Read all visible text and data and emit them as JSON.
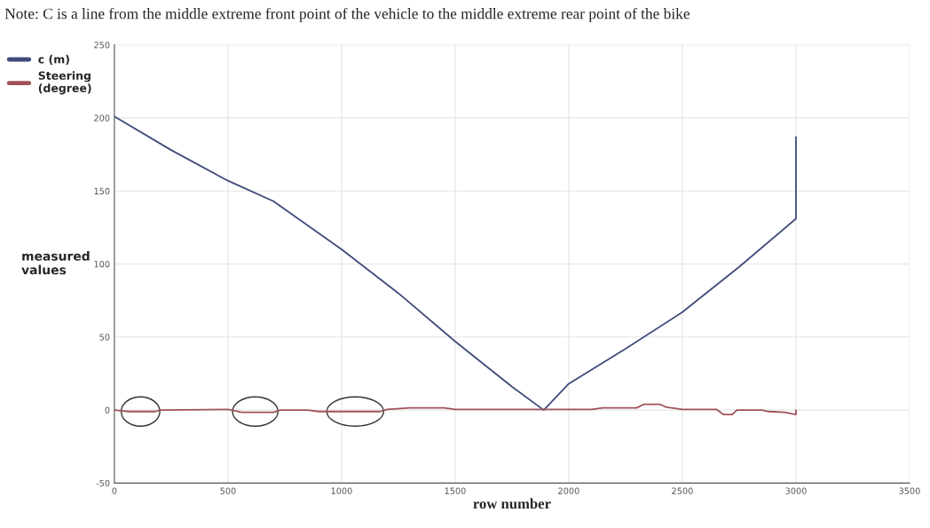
{
  "chart_data": {
    "type": "line",
    "title": "Note: C is a line from the middle extreme front point of the vehicle to the middle extreme rear point of the bike",
    "xlabel": "row number",
    "ylabel": "measured\nvalues",
    "xlim": [
      0,
      3500
    ],
    "ylim": [
      -50,
      250
    ],
    "xticks": [
      0,
      500,
      1000,
      1500,
      2000,
      2500,
      3000,
      3500
    ],
    "yticks": [
      -50,
      0,
      50,
      100,
      150,
      200,
      250
    ],
    "grid": true,
    "legend": "top left",
    "line_style": "solid",
    "marker": "none",
    "series": [
      {
        "name": "c (m)",
        "color": "#3f4b7a",
        "x": [
          0,
          250,
          500,
          700,
          1000,
          1250,
          1500,
          1750,
          1890,
          2000,
          2250,
          2500,
          2750,
          3000,
          3000
        ],
        "values": [
          201,
          178,
          157,
          143,
          110,
          80,
          47,
          16,
          0,
          18,
          42,
          67,
          98,
          131,
          187
        ]
      },
      {
        "name": "Steering\n(degree)",
        "color": "#a0525a",
        "x": [
          0,
          30,
          60,
          180,
          200,
          500,
          530,
          560,
          700,
          730,
          850,
          900,
          1170,
          1200,
          1300,
          1450,
          1500,
          1800,
          2100,
          2150,
          2300,
          2330,
          2400,
          2430,
          2500,
          2650,
          2680,
          2720,
          2740,
          2850,
          2880,
          2950,
          3000,
          3000
        ],
        "values": [
          0,
          -0.5,
          -1,
          -1,
          0,
          0.5,
          -0.5,
          -1.5,
          -1.5,
          0,
          0,
          -1,
          -1,
          0.5,
          1.5,
          1.5,
          0.5,
          0.5,
          0.5,
          1.5,
          1.5,
          4,
          4,
          2,
          0.5,
          0.5,
          -3,
          -3,
          0,
          0,
          -1,
          -1.5,
          -3,
          0
        ]
      }
    ]
  }
}
